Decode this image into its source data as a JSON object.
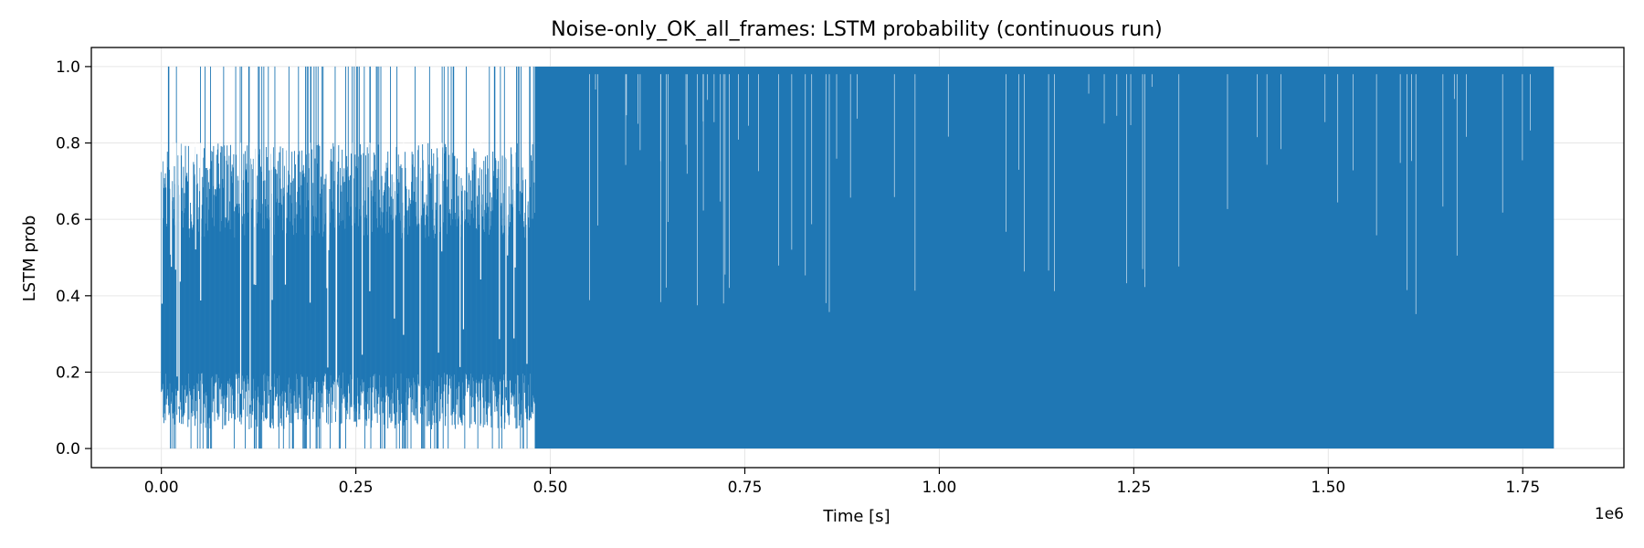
{
  "chart_data": {
    "type": "line",
    "title": "Noise-only_OK_all_frames: LSTM probability (continuous run)",
    "xlabel": "Time [s]",
    "ylabel": "LSTM prob",
    "x_offset_label": "1e6",
    "xlim": [
      -90000,
      1880000
    ],
    "ylim": [
      -0.05,
      1.05
    ],
    "x_ticks": [
      0,
      0.25,
      0.5,
      0.75,
      1.0,
      1.25,
      1.5,
      1.75
    ],
    "x_tick_labels": [
      "0.00",
      "0.25",
      "0.50",
      "0.75",
      "1.00",
      "1.25",
      "1.50",
      "1.75"
    ],
    "y_ticks": [
      0.0,
      0.2,
      0.4,
      0.6,
      0.8,
      1.0
    ],
    "y_tick_labels": [
      "0.0",
      "0.2",
      "0.4",
      "0.6",
      "0.8",
      "1.0"
    ],
    "grid": true,
    "series": [
      {
        "color": "#1f77b4",
        "x_range": [
          0,
          1790000
        ],
        "y_range": [
          0.0,
          1.0
        ],
        "segments": [
          {
            "x_start": 0,
            "x_end": 480000,
            "y_min": 0.0,
            "y_max": 1.0,
            "typical_low": 0.05,
            "typical_high": 0.8,
            "pattern": "sparse"
          },
          {
            "x_start": 480000,
            "x_end": 1790000,
            "y_min": 0.0,
            "y_max": 1.0,
            "pattern": "dense"
          }
        ]
      }
    ]
  }
}
